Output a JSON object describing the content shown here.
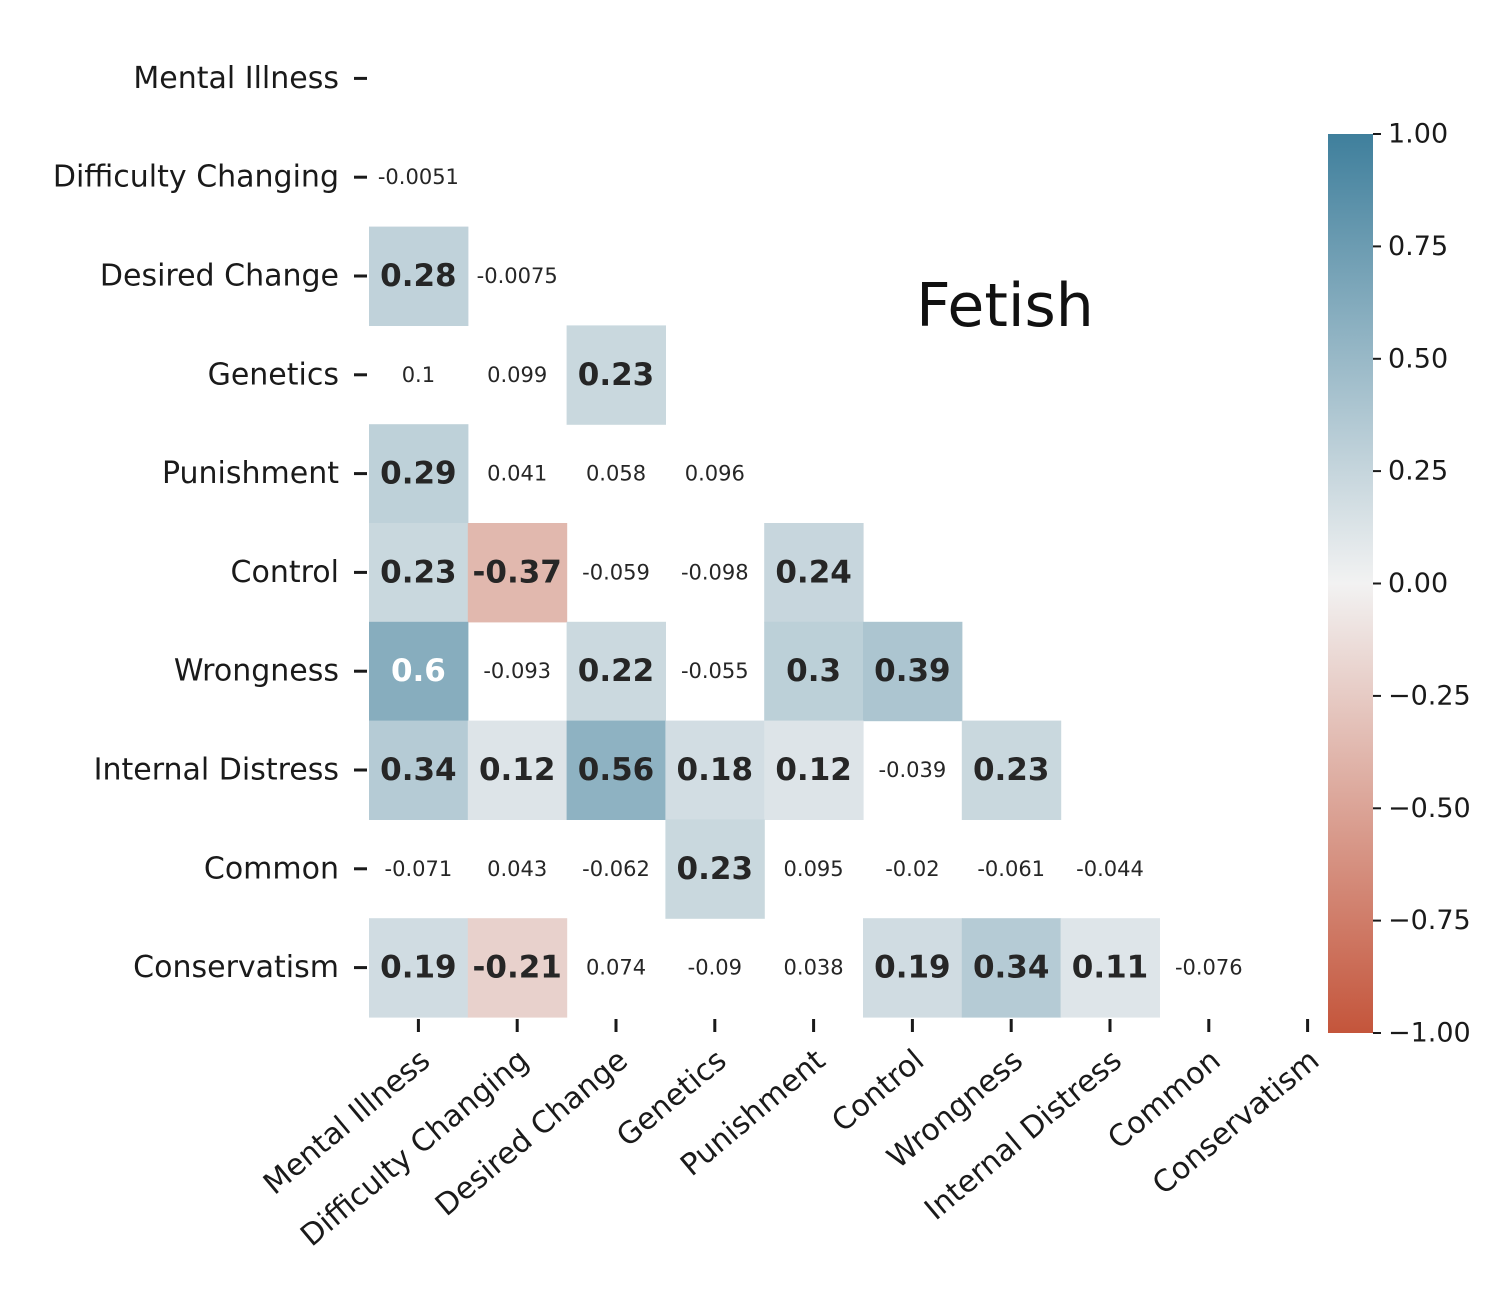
{
  "chart_data": {
    "type": "heatmap",
    "title": "Fetish",
    "variables": [
      "Mental Illness",
      "Difficulty Changing",
      "Desired Change",
      "Genetics",
      "Punishment",
      "Control",
      "Wrongness",
      "Internal Distress",
      "Common",
      "Conservatism"
    ],
    "mask": "lower-triangle (diagonal and upper triangle hidden)",
    "cells": [
      {
        "row": "Difficulty Changing",
        "col": "Mental Illness",
        "value": -0.0051,
        "label": "-0.0051",
        "significant": false
      },
      {
        "row": "Desired Change",
        "col": "Mental Illness",
        "value": 0.28,
        "label": "0.28",
        "significant": true
      },
      {
        "row": "Desired Change",
        "col": "Difficulty Changing",
        "value": -0.0075,
        "label": "-0.0075",
        "significant": false
      },
      {
        "row": "Genetics",
        "col": "Mental Illness",
        "value": 0.1,
        "label": "0.1",
        "significant": false
      },
      {
        "row": "Genetics",
        "col": "Difficulty Changing",
        "value": 0.099,
        "label": "0.099",
        "significant": false
      },
      {
        "row": "Genetics",
        "col": "Desired Change",
        "value": 0.23,
        "label": "0.23",
        "significant": true
      },
      {
        "row": "Punishment",
        "col": "Mental Illness",
        "value": 0.29,
        "label": "0.29",
        "significant": true
      },
      {
        "row": "Punishment",
        "col": "Difficulty Changing",
        "value": 0.041,
        "label": "0.041",
        "significant": false
      },
      {
        "row": "Punishment",
        "col": "Desired Change",
        "value": 0.058,
        "label": "0.058",
        "significant": false
      },
      {
        "row": "Punishment",
        "col": "Genetics",
        "value": 0.096,
        "label": "0.096",
        "significant": false
      },
      {
        "row": "Control",
        "col": "Mental Illness",
        "value": 0.23,
        "label": "0.23",
        "significant": true
      },
      {
        "row": "Control",
        "col": "Difficulty Changing",
        "value": -0.37,
        "label": "-0.37",
        "significant": true
      },
      {
        "row": "Control",
        "col": "Desired Change",
        "value": -0.059,
        "label": "-0.059",
        "significant": false
      },
      {
        "row": "Control",
        "col": "Genetics",
        "value": -0.098,
        "label": "-0.098",
        "significant": false
      },
      {
        "row": "Control",
        "col": "Punishment",
        "value": 0.24,
        "label": "0.24",
        "significant": true
      },
      {
        "row": "Wrongness",
        "col": "Mental Illness",
        "value": 0.6,
        "label": "0.6",
        "significant": true
      },
      {
        "row": "Wrongness",
        "col": "Difficulty Changing",
        "value": -0.093,
        "label": "-0.093",
        "significant": false
      },
      {
        "row": "Wrongness",
        "col": "Desired Change",
        "value": 0.22,
        "label": "0.22",
        "significant": true
      },
      {
        "row": "Wrongness",
        "col": "Genetics",
        "value": -0.055,
        "label": "-0.055",
        "significant": false
      },
      {
        "row": "Wrongness",
        "col": "Punishment",
        "value": 0.3,
        "label": "0.3",
        "significant": true
      },
      {
        "row": "Wrongness",
        "col": "Control",
        "value": 0.39,
        "label": "0.39",
        "significant": true
      },
      {
        "row": "Internal Distress",
        "col": "Mental Illness",
        "value": 0.34,
        "label": "0.34",
        "significant": true
      },
      {
        "row": "Internal Distress",
        "col": "Difficulty Changing",
        "value": 0.12,
        "label": "0.12",
        "significant": true
      },
      {
        "row": "Internal Distress",
        "col": "Desired Change",
        "value": 0.56,
        "label": "0.56",
        "significant": true
      },
      {
        "row": "Internal Distress",
        "col": "Genetics",
        "value": 0.18,
        "label": "0.18",
        "significant": true
      },
      {
        "row": "Internal Distress",
        "col": "Punishment",
        "value": 0.12,
        "label": "0.12",
        "significant": true
      },
      {
        "row": "Internal Distress",
        "col": "Control",
        "value": -0.039,
        "label": "-0.039",
        "significant": false
      },
      {
        "row": "Internal Distress",
        "col": "Wrongness",
        "value": 0.23,
        "label": "0.23",
        "significant": true
      },
      {
        "row": "Common",
        "col": "Mental Illness",
        "value": -0.071,
        "label": "-0.071",
        "significant": false
      },
      {
        "row": "Common",
        "col": "Difficulty Changing",
        "value": 0.043,
        "label": "0.043",
        "significant": false
      },
      {
        "row": "Common",
        "col": "Desired Change",
        "value": -0.062,
        "label": "-0.062",
        "significant": false
      },
      {
        "row": "Common",
        "col": "Genetics",
        "value": 0.23,
        "label": "0.23",
        "significant": true
      },
      {
        "row": "Common",
        "col": "Punishment",
        "value": 0.095,
        "label": "0.095",
        "significant": false
      },
      {
        "row": "Common",
        "col": "Control",
        "value": -0.02,
        "label": "-0.02",
        "significant": false
      },
      {
        "row": "Common",
        "col": "Wrongness",
        "value": -0.061,
        "label": "-0.061",
        "significant": false
      },
      {
        "row": "Common",
        "col": "Internal Distress",
        "value": -0.044,
        "label": "-0.044",
        "significant": false
      },
      {
        "row": "Conservatism",
        "col": "Mental Illness",
        "value": 0.19,
        "label": "0.19",
        "significant": true
      },
      {
        "row": "Conservatism",
        "col": "Difficulty Changing",
        "value": -0.21,
        "label": "-0.21",
        "significant": true
      },
      {
        "row": "Conservatism",
        "col": "Desired Change",
        "value": 0.074,
        "label": "0.074",
        "significant": false
      },
      {
        "row": "Conservatism",
        "col": "Genetics",
        "value": -0.09,
        "label": "-0.09",
        "significant": false
      },
      {
        "row": "Conservatism",
        "col": "Punishment",
        "value": 0.038,
        "label": "0.038",
        "significant": false
      },
      {
        "row": "Conservatism",
        "col": "Control",
        "value": 0.19,
        "label": "0.19",
        "significant": true
      },
      {
        "row": "Conservatism",
        "col": "Wrongness",
        "value": 0.34,
        "label": "0.34",
        "significant": true
      },
      {
        "row": "Conservatism",
        "col": "Internal Distress",
        "value": 0.11,
        "label": "0.11",
        "significant": true
      },
      {
        "row": "Conservatism",
        "col": "Common",
        "value": -0.076,
        "label": "-0.076",
        "significant": false
      }
    ],
    "colorbar": {
      "range": [
        -1.0,
        1.0
      ],
      "ticks": [
        1.0,
        0.75,
        0.5,
        0.25,
        0.0,
        -0.25,
        -0.5,
        -0.75,
        -1.0
      ],
      "tick_labels": [
        "1.00",
        "0.75",
        "0.50",
        "0.25",
        "0.00",
        "−0.25",
        "−0.50",
        "−0.75",
        "−1.00"
      ],
      "colors": {
        "positive": "#3f7f9c",
        "neutral": "#f2f2f2",
        "negative": "#c4553b"
      }
    },
    "display_rule": "Cells with non-significant correlations are shown with no fill color and small regular text; significant ones are filled and bold.",
    "grid": false,
    "legend": "colorbar-right"
  }
}
